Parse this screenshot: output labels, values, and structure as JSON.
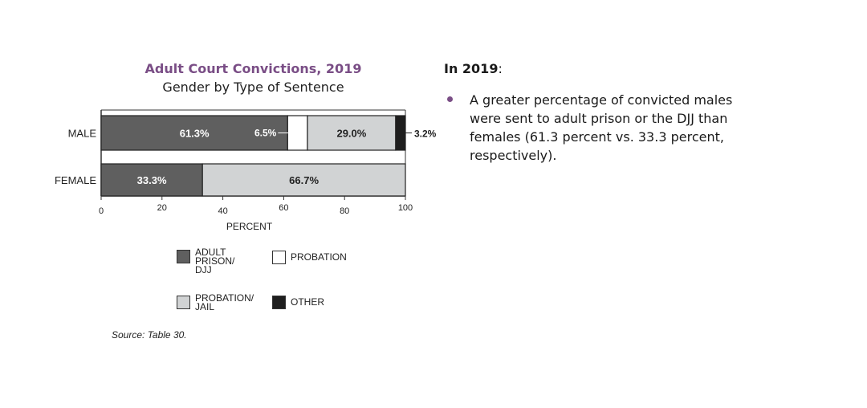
{
  "chart_data": {
    "type": "bar",
    "orientation": "horizontal",
    "stacked": true,
    "title": "Adult Court Convictions, 2019",
    "subtitle": "Gender by Type of Sentence",
    "xlabel": "PERCENT",
    "ylabel": "",
    "xlim": [
      0,
      100
    ],
    "x_ticks": [
      "0",
      "20",
      "40",
      "60",
      "80",
      "100"
    ],
    "categories": [
      "MALE",
      "FEMALE"
    ],
    "series": [
      {
        "name": "ADULT PRISON/ DJJ",
        "values": [
          61.3,
          33.3
        ],
        "labels": [
          "61.3%",
          "33.3%"
        ],
        "color": "#5f5f5f"
      },
      {
        "name": "PROBATION",
        "values": [
          6.5,
          0
        ],
        "labels": [
          "6.5%",
          ""
        ],
        "color": "#ffffff"
      },
      {
        "name": "PROBATION/ JAIL",
        "values": [
          29.0,
          66.7
        ],
        "labels": [
          "29.0%",
          "66.7%"
        ],
        "color": "#d1d3d4"
      },
      {
        "name": "OTHER",
        "values": [
          3.2,
          0
        ],
        "labels": [
          "3.2%",
          ""
        ],
        "color": "#1e1e1e"
      }
    ],
    "legend": {
      "placement": "bottom",
      "items": [
        {
          "label": "ADULT\nPRISON/\nDJJ",
          "color": "#5f5f5f"
        },
        {
          "label": "PROBATION",
          "color": "#ffffff"
        },
        {
          "label": "PROBATION/\nJAIL",
          "color": "#d1d3d4"
        },
        {
          "label": "OTHER",
          "color": "#1e1e1e"
        }
      ]
    },
    "source": "Source: Table 30.",
    "grid": false
  },
  "notes": {
    "heading_bold": "In 2019",
    "heading_rest": ":",
    "bullets": [
      "A greater percentage of convicted males were sent to adult prison or the DJJ than females (61.3 percent vs. 33.3 percent, respectively)."
    ]
  }
}
